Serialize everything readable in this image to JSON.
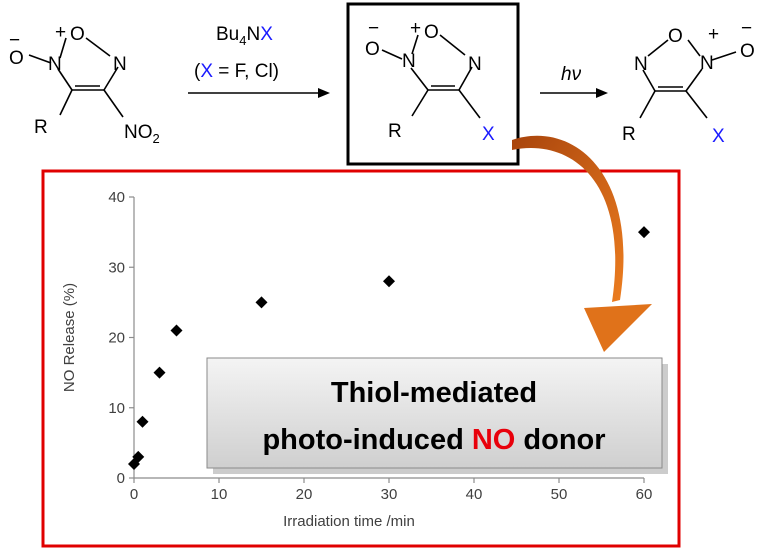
{
  "scheme": {
    "reagent_line1": "Bu",
    "reagent_sub": "4",
    "reagent_N": "N",
    "reagent_X": "X",
    "condition_open": "(",
    "condition_X": "X",
    "condition_rest": " = F,  Cl)",
    "hv_label": "hν",
    "atom_minus": "−",
    "atom_plus": "+",
    "atom_O": "O",
    "atom_N": "N",
    "atom_R": "R",
    "atom_X": "X",
    "nitro_NO": "NO",
    "nitro_sub": "2",
    "colors": {
      "halogen": "#1a1aff",
      "box_border": "#000000",
      "arrow": "#d96a18"
    }
  },
  "callout": {
    "line1": "Thiol-mediated",
    "line2_pre": "photo-induced ",
    "line2_highlight": "NO",
    "line2_post": " donor",
    "highlight_color": "#e8000b"
  },
  "chart_data": {
    "type": "scatter",
    "xlabel": "Irradiation time /min",
    "ylabel": "NO Release (%)",
    "xlim": [
      0,
      60
    ],
    "ylim": [
      0,
      40
    ],
    "xticks": [
      0,
      10,
      20,
      30,
      40,
      50,
      60
    ],
    "yticks": [
      0,
      10,
      20,
      30,
      40
    ],
    "grid": false,
    "marker": "diamond",
    "marker_color": "#000000",
    "frame_color": "#e00000",
    "series": [
      {
        "x": [
          0,
          0.5,
          1,
          3,
          5,
          15,
          30,
          60
        ],
        "y": [
          2,
          3,
          8,
          15,
          21,
          25,
          28,
          35
        ]
      }
    ]
  }
}
